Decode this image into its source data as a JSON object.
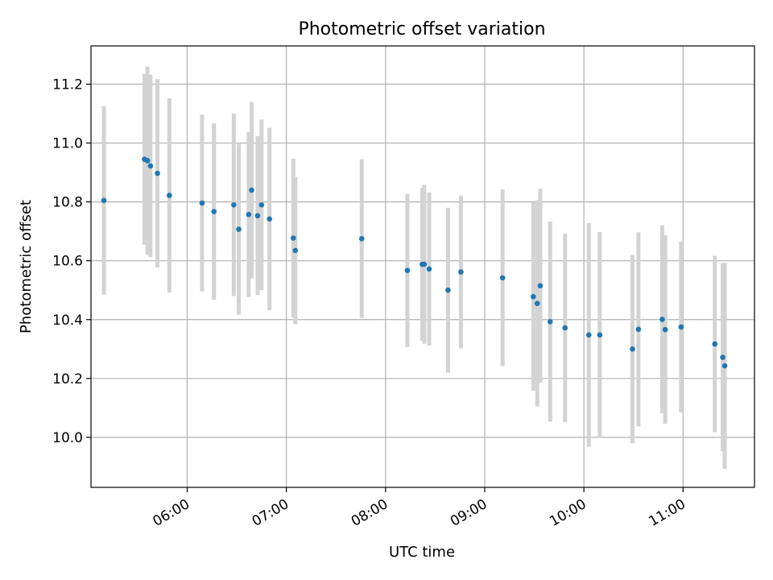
{
  "chart_data": {
    "type": "scatter",
    "title": "Photometric offset variation",
    "xlabel": "UTC time",
    "ylabel": "Photometric offset",
    "x_unit": "hours UTC",
    "xlim": [
      5.03,
      11.72
    ],
    "ylim": [
      9.83,
      11.33
    ],
    "x_ticks": [
      {
        "value": 6,
        "label": "06:00"
      },
      {
        "value": 7,
        "label": "07:00"
      },
      {
        "value": 8,
        "label": "08:00"
      },
      {
        "value": 9,
        "label": "09:00"
      },
      {
        "value": 10,
        "label": "10:00"
      },
      {
        "value": 11,
        "label": "11:00"
      }
    ],
    "y_ticks": [
      {
        "value": 10.0,
        "label": "10.0"
      },
      {
        "value": 10.2,
        "label": "10.2"
      },
      {
        "value": 10.4,
        "label": "10.4"
      },
      {
        "value": 10.6,
        "label": "10.6"
      },
      {
        "value": 10.8,
        "label": "10.8"
      },
      {
        "value": 11.0,
        "label": "11.0"
      },
      {
        "value": 11.2,
        "label": "11.2"
      }
    ],
    "grid": true,
    "colors": {
      "points": "#1f77b4",
      "error_bars": "#d3d3d3",
      "grid": "#b0b0b0"
    },
    "series": [
      {
        "points": [
          {
            "x": 5.16,
            "y": 10.805,
            "err": 0.32
          },
          {
            "x": 5.57,
            "y": 10.945,
            "err": 0.29
          },
          {
            "x": 5.6,
            "y": 10.94,
            "err": 0.32
          },
          {
            "x": 5.63,
            "y": 10.922,
            "err": 0.31
          },
          {
            "x": 5.7,
            "y": 10.897,
            "err": 0.32
          },
          {
            "x": 5.82,
            "y": 10.822,
            "err": 0.33
          },
          {
            "x": 6.15,
            "y": 10.796,
            "err": 0.3
          },
          {
            "x": 6.27,
            "y": 10.767,
            "err": 0.3
          },
          {
            "x": 6.47,
            "y": 10.79,
            "err": 0.31
          },
          {
            "x": 6.52,
            "y": 10.707,
            "err": 0.29
          },
          {
            "x": 6.62,
            "y": 10.757,
            "err": 0.28
          },
          {
            "x": 6.65,
            "y": 10.84,
            "err": 0.3
          },
          {
            "x": 6.71,
            "y": 10.753,
            "err": 0.27
          },
          {
            "x": 6.75,
            "y": 10.79,
            "err": 0.29
          },
          {
            "x": 6.83,
            "y": 10.742,
            "err": 0.31
          },
          {
            "x": 7.07,
            "y": 10.677,
            "err": 0.27
          },
          {
            "x": 7.09,
            "y": 10.635,
            "err": 0.25
          },
          {
            "x": 7.76,
            "y": 10.675,
            "err": 0.27
          },
          {
            "x": 8.22,
            "y": 10.567,
            "err": 0.26
          },
          {
            "x": 8.37,
            "y": 10.588,
            "err": 0.26
          },
          {
            "x": 8.39,
            "y": 10.588,
            "err": 0.27
          },
          {
            "x": 8.44,
            "y": 10.572,
            "err": 0.26
          },
          {
            "x": 8.63,
            "y": 10.5,
            "err": 0.28
          },
          {
            "x": 8.76,
            "y": 10.562,
            "err": 0.26
          },
          {
            "x": 9.18,
            "y": 10.542,
            "err": 0.3
          },
          {
            "x": 9.49,
            "y": 10.478,
            "err": 0.32
          },
          {
            "x": 9.53,
            "y": 10.455,
            "err": 0.35
          },
          {
            "x": 9.56,
            "y": 10.515,
            "err": 0.33
          },
          {
            "x": 9.66,
            "y": 10.393,
            "err": 0.34
          },
          {
            "x": 9.81,
            "y": 10.372,
            "err": 0.32
          },
          {
            "x": 10.05,
            "y": 10.348,
            "err": 0.38
          },
          {
            "x": 10.16,
            "y": 10.348,
            "err": 0.35
          },
          {
            "x": 10.49,
            "y": 10.3,
            "err": 0.32
          },
          {
            "x": 10.55,
            "y": 10.367,
            "err": 0.33
          },
          {
            "x": 10.79,
            "y": 10.401,
            "err": 0.32
          },
          {
            "x": 10.82,
            "y": 10.366,
            "err": 0.32
          },
          {
            "x": 10.98,
            "y": 10.375,
            "err": 0.29
          },
          {
            "x": 11.32,
            "y": 10.317,
            "err": 0.3
          },
          {
            "x": 11.4,
            "y": 10.272,
            "err": 0.32
          },
          {
            "x": 11.42,
            "y": 10.243,
            "err": 0.35
          }
        ]
      }
    ]
  }
}
